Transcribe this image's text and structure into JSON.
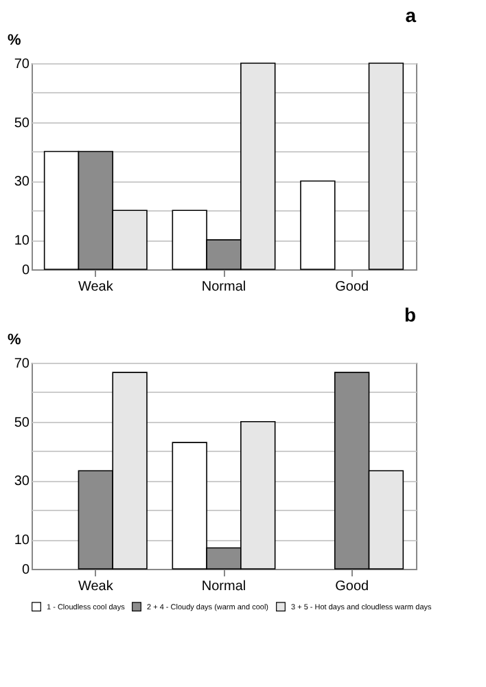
{
  "chart_data": [
    {
      "type": "bar",
      "title": "a",
      "ylabel": "%",
      "categories": [
        "Weak",
        "Normal",
        "Good"
      ],
      "series": [
        {
          "name": "1 - Cloudless cool days",
          "color": "#ffffff",
          "values": [
            40,
            20,
            30
          ]
        },
        {
          "name": "2 + 4 - Cloudy days (warm and cool)",
          "color": "#8c8c8c",
          "values": [
            40,
            10,
            null
          ]
        },
        {
          "name": "3 + 5 - Hot days and cloudless warm days",
          "color": "#e6e6e6",
          "values": [
            20,
            70,
            70
          ]
        }
      ],
      "ylim": [
        0,
        70
      ],
      "yticks": [
        0,
        10,
        {
          "value": 20,
          "label": null
        },
        30,
        {
          "value": 40,
          "label": null
        },
        50,
        {
          "value": 60,
          "label": null
        },
        70
      ],
      "grid": "y",
      "legend": "bottom"
    },
    {
      "type": "bar",
      "title": "b",
      "ylabel": "%",
      "categories": [
        "Weak",
        "Normal",
        "Good"
      ],
      "series": [
        {
          "name": "1 - Cloudless cool days",
          "color": "#ffffff",
          "values": [
            null,
            42.9,
            null
          ]
        },
        {
          "name": "2 + 4 - Cloudy days (warm and cool)",
          "color": "#8c8c8c",
          "values": [
            33.3,
            7.1,
            66.7
          ]
        },
        {
          "name": "3 + 5 - Hot days and cloudless warm days",
          "color": "#e6e6e6",
          "values": [
            66.7,
            50,
            33.3
          ]
        }
      ],
      "ylim": [
        0,
        70
      ],
      "yticks": [
        0,
        10,
        {
          "value": 20,
          "label": null
        },
        30,
        {
          "value": 40,
          "label": null
        },
        50,
        {
          "value": 60,
          "label": null
        },
        70
      ],
      "grid": "y",
      "legend": "bottom"
    }
  ]
}
